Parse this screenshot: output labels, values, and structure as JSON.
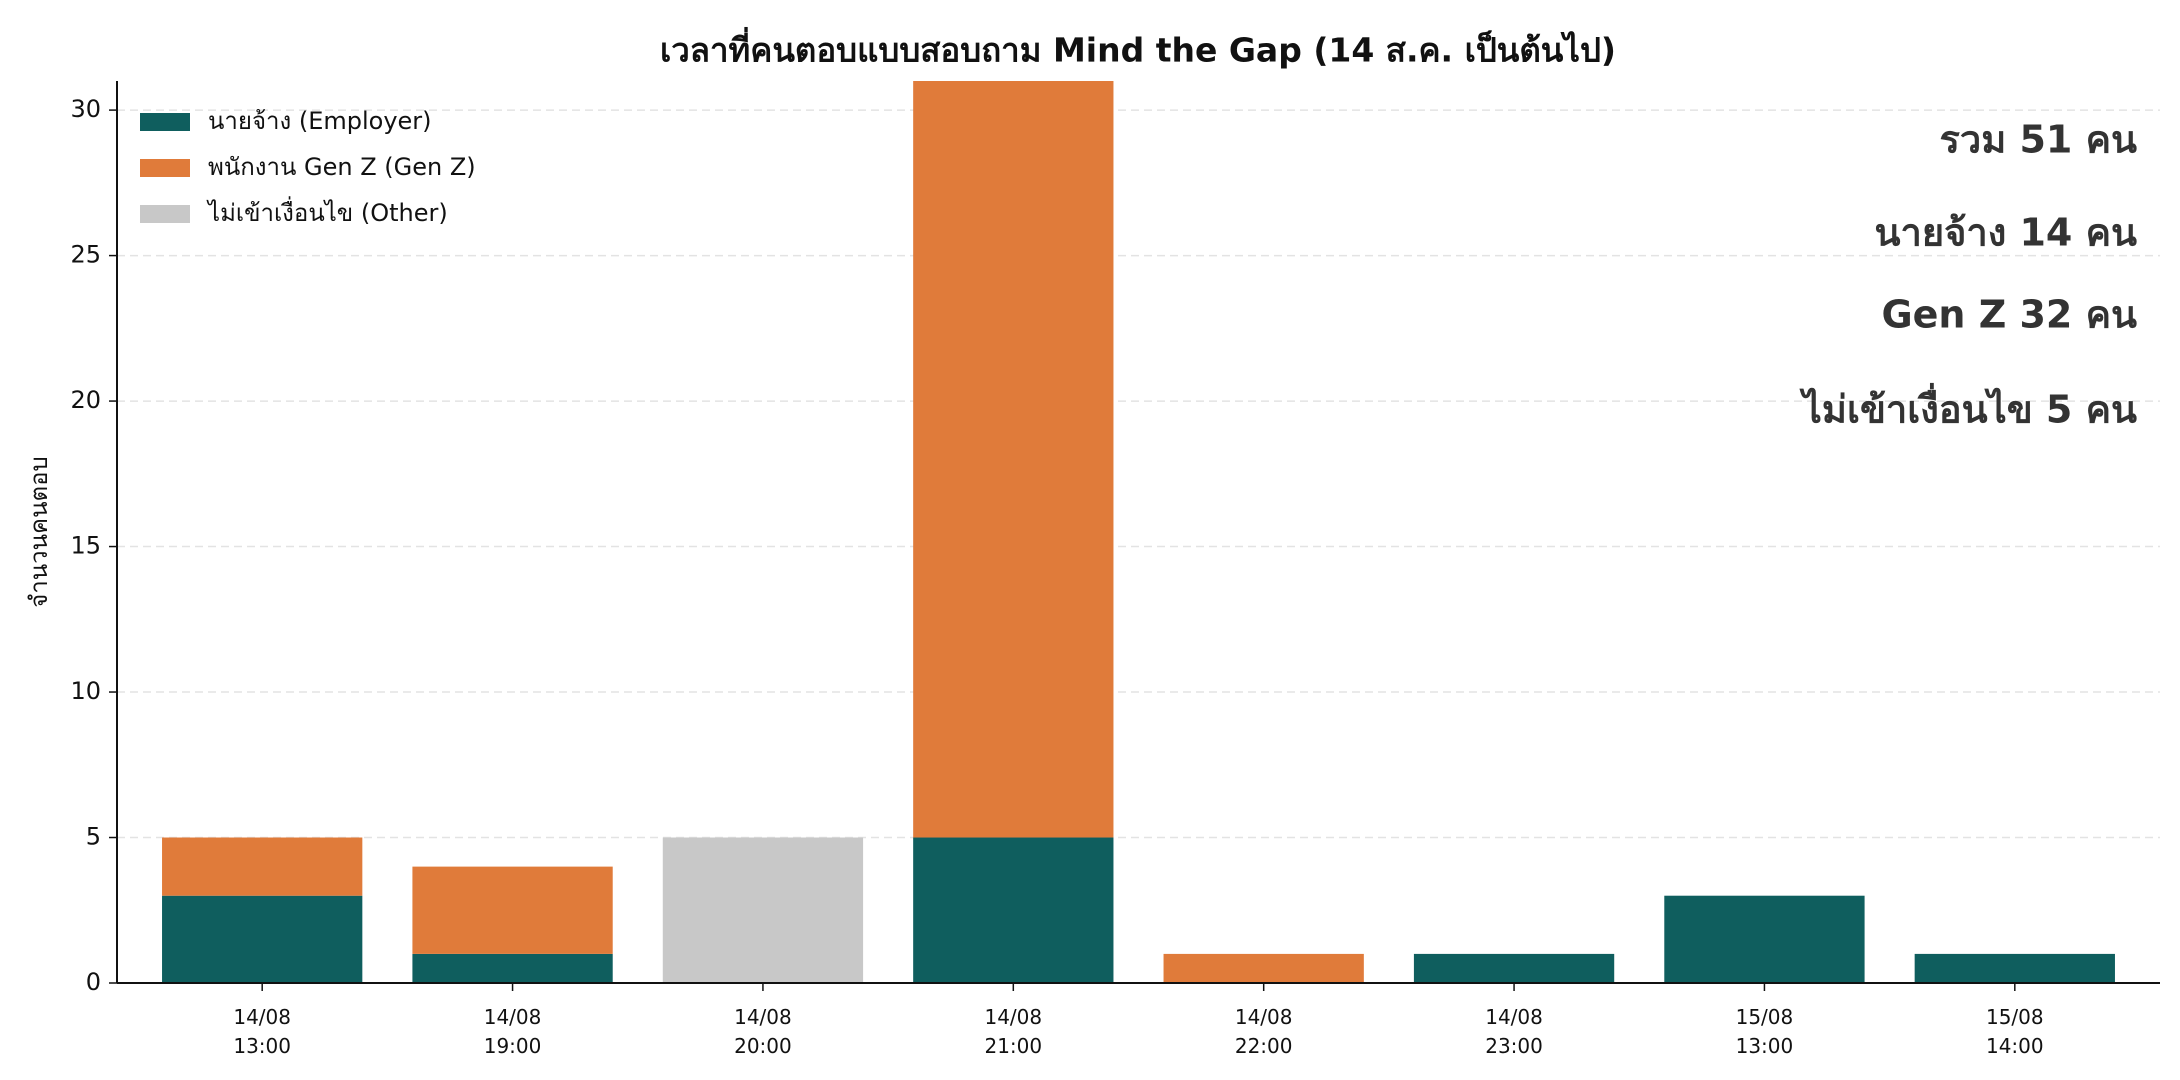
{
  "chart_data": {
    "type": "bar",
    "stacked": true,
    "title": "เวลาที่คนตอบแบบสอบถาม Mind the Gap (14 ส.ค. เป็นต้นไป)",
    "ylabel": "จำนวนคนตอบ",
    "categories": [
      "14/08\n13:00",
      "14/08\n19:00",
      "14/08\n20:00",
      "14/08\n21:00",
      "14/08\n22:00",
      "14/08\n23:00",
      "15/08\n13:00",
      "15/08\n14:00"
    ],
    "series": [
      {
        "name": "นายจ้าง (Employer)",
        "color": "#0f5e5e",
        "values": [
          3,
          1,
          0,
          5,
          0,
          1,
          3,
          1
        ]
      },
      {
        "name": "พนักงาน Gen Z (Gen Z)",
        "color": "#e07b3a",
        "values": [
          2,
          3,
          0,
          26,
          1,
          0,
          0,
          0
        ]
      },
      {
        "name": "ไม่เข้าเงื่อนไข (Other)",
        "color": "#c8c8c8",
        "values": [
          0,
          0,
          5,
          0,
          0,
          0,
          0,
          0
        ]
      }
    ],
    "ylim": [
      0,
      31
    ],
    "yticks": [
      0,
      5,
      10,
      15,
      20,
      25,
      30
    ],
    "grid": true,
    "legend": "upper left",
    "annotations": [
      "รวม 51 คน",
      "นายจ้าง 14 คน",
      "Gen Z 32 คน",
      "ไม่เข้าเงื่อนไข 5 คน"
    ]
  }
}
